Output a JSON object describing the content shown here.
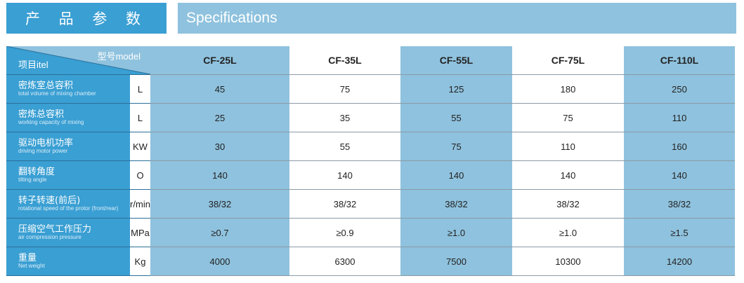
{
  "header": {
    "title_cn": "产 品 参 数",
    "title_en": "Specifications"
  },
  "table": {
    "corner_model": "型号model",
    "corner_item": "项目itel",
    "models": [
      "CF-25L",
      "CF-35L",
      "CF-55L",
      "CF-75L",
      "CF-110L"
    ],
    "rows": [
      {
        "cn": "密炼室总容积",
        "en": "total volume of mixing chamber",
        "unit": "L",
        "values": [
          "45",
          "75",
          "125",
          "180",
          "250"
        ]
      },
      {
        "cn": "密炼总容积",
        "en": "working capacity of mixing",
        "unit": "L",
        "values": [
          "25",
          "35",
          "55",
          "75",
          "110"
        ]
      },
      {
        "cn": "驱动电机功率",
        "en": "driving motor power",
        "unit": "KW",
        "values": [
          "30",
          "55",
          "75",
          "110",
          "160"
        ]
      },
      {
        "cn": "翻转角度",
        "en": "tilting angle",
        "unit": "O",
        "values": [
          "140",
          "140",
          "140",
          "140",
          "140"
        ]
      },
      {
        "cn": "转子转速(前后)",
        "en": "rotational speed of the protor (front/rear)",
        "unit": "r/min",
        "values": [
          "38/32",
          "38/32",
          "38/32",
          "38/32",
          "38/32"
        ]
      },
      {
        "cn": "压缩空气工作压力",
        "en": "air compression pressure",
        "unit": "MPa",
        "values": [
          "≥0.7",
          "≥0.9",
          "≥1.0",
          "≥1.0",
          "≥1.5"
        ]
      },
      {
        "cn": "重量",
        "en": "Net weight",
        "unit": "Kg",
        "values": [
          "4000",
          "6300",
          "7500",
          "10300",
          "14200"
        ]
      }
    ]
  },
  "colors": {
    "primary": "#3a9fd3",
    "light": "#8fc2de"
  }
}
